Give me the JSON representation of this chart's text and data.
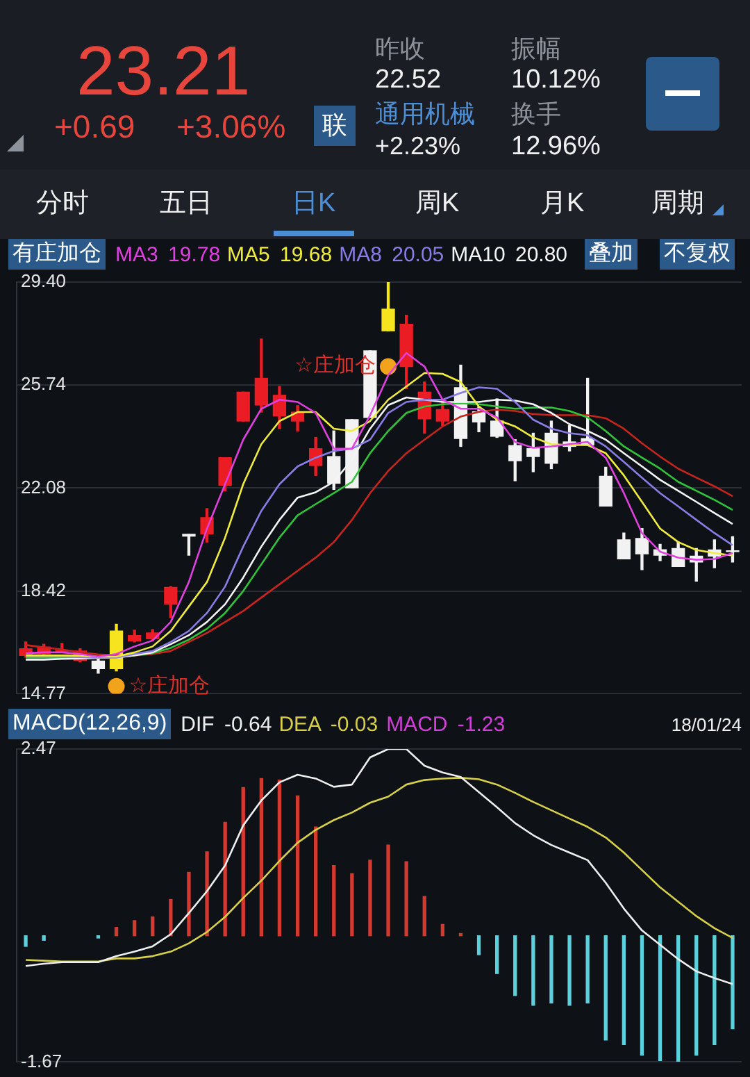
{
  "chart_data": [
    {
      "type": "other",
      "annotations": [
        "23.21",
        "+0.69",
        "+3.06%",
        "联",
        "昨收",
        "22.52",
        "通用机械",
        "+2.23%",
        "振幅",
        "10.12%",
        "换手",
        "12.96%",
        "分时",
        "五日",
        "日K",
        "周K",
        "月K",
        "周期"
      ]
    },
    {
      "type": "candlestick",
      "title": "有庄加仓",
      "categories": [
        null,
        null,
        null,
        null,
        null,
        null,
        null,
        null,
        null,
        null,
        null,
        null,
        null,
        null,
        null,
        null,
        null,
        null,
        null,
        null,
        null,
        null,
        null,
        null,
        null,
        null,
        null,
        null,
        null,
        null,
        null,
        null,
        null,
        null,
        null,
        null,
        null,
        null,
        null,
        null
      ],
      "ohlc": [
        [
          16.13,
          16.61,
          16.07,
          16.37
        ],
        [
          16.19,
          16.53,
          16.13,
          16.43
        ],
        [
          16.28,
          16.56,
          16.26,
          16.31
        ],
        [
          15.95,
          16.37,
          15.9,
          16.29
        ],
        [
          15.93,
          16.05,
          15.5,
          15.66
        ],
        [
          15.66,
          17.24,
          15.58,
          17.0
        ],
        [
          16.65,
          17.03,
          16.61,
          16.84
        ],
        [
          16.72,
          17.05,
          16.66,
          16.93
        ],
        [
          17.95,
          18.58,
          17.48,
          18.55
        ],
        [
          20.44,
          20.44,
          19.69,
          20.37
        ],
        [
          20.45,
          21.35,
          20.16,
          21.03
        ],
        [
          22.18,
          23.16,
          21.98,
          23.16
        ],
        [
          24.46,
          25.49,
          24.46,
          25.49
        ],
        [
          25.03,
          27.38,
          24.78,
          25.98
        ],
        [
          24.64,
          25.69,
          24.19,
          25.38
        ],
        [
          24.46,
          25.01,
          24.11,
          24.78
        ],
        [
          22.88,
          23.88,
          22.53,
          23.48
        ],
        [
          23.2,
          24.11,
          22.03,
          22.25
        ],
        [
          24.51,
          24.51,
          22.09,
          22.09
        ],
        [
          26.96,
          26.96,
          24.59,
          24.59
        ],
        [
          27.67,
          29.4,
          27.67,
          28.44
        ],
        [
          26.4,
          28.22,
          25.61,
          27.9
        ],
        [
          24.54,
          25.85,
          24.03,
          25.49
        ],
        [
          24.46,
          25.19,
          24.3,
          24.87
        ],
        [
          25.65,
          26.45,
          23.56,
          23.84
        ],
        [
          24.79,
          24.98,
          24.08,
          24.43
        ],
        [
          24.46,
          25.25,
          23.88,
          23.92
        ],
        [
          23.59,
          23.8,
          22.34,
          23.05
        ],
        [
          23.48,
          24.03,
          22.66,
          23.2
        ],
        [
          24.03,
          24.46,
          22.77,
          22.96
        ],
        [
          23.72,
          24.3,
          23.4,
          23.56
        ],
        [
          23.84,
          25.98,
          23.61,
          23.61
        ],
        [
          22.5,
          22.82,
          21.44,
          21.44
        ],
        [
          20.24,
          20.48,
          19.56,
          19.56
        ],
        [
          20.29,
          20.64,
          19.18,
          19.74
        ],
        [
          19.89,
          20.08,
          19.5,
          19.69
        ],
        [
          19.93,
          20.16,
          19.29,
          19.29
        ],
        [
          19.66,
          19.93,
          18.77,
          19.45
        ],
        [
          19.88,
          20.24,
          19.25,
          19.66
        ],
        [
          19.85,
          20.35,
          19.45,
          19.82
        ]
      ],
      "colors": [
        "#ec1c24",
        "#ec1c24",
        "#ec1c24",
        "#ec1c24",
        "#f2f2f2",
        "#f5e41e",
        "#ec1c24",
        "#ec1c24",
        "#ec1c24",
        "#f2f2f2",
        "#ec1c24",
        "#ec1c24",
        "#ec1c24",
        "#ec1c24",
        "#ec1c24",
        "#ec1c24",
        "#ec1c24",
        "#f2f2f2",
        "#f2f2f2",
        "#f2f2f2",
        "#f5e41e",
        "#ec1c24",
        "#ec1c24",
        "#ec1c24",
        "#f2f2f2",
        "#f2f2f2",
        "#f2f2f2",
        "#f2f2f2",
        "#f2f2f2",
        "#f2f2f2",
        "#f2f2f2",
        "#f2f2f2",
        "#f2f2f2",
        "#f2f2f2",
        "#f2f2f2",
        "#f2f2f2",
        "#f2f2f2",
        "#f2f2f2",
        "#f2f2f2",
        "#f2f2f2"
      ],
      "ylim": [
        14.77,
        29.4
      ],
      "yticks": [
        14.77,
        18.42,
        22.08,
        25.74,
        {
          "value": 29.4,
          "label": "29.40"
        }
      ],
      "grid": "y",
      "legend": "top left",
      "series": [
        {
          "type": "line",
          "name": "MA3 19.78",
          "color": "#e040e0",
          "values": [
            16.21,
            16.24,
            16.24,
            16.18,
            16.09,
            16.18,
            16.45,
            16.66,
            17.32,
            18.74,
            20.64,
            22.22,
            23.8,
            24.9,
            25.22,
            25.14,
            24.75,
            23.48,
            23.48,
            24.67,
            26.09,
            26.88,
            26.4,
            25.22,
            24.9,
            24.9,
            24.59,
            23.72,
            23.51,
            23.56,
            23.64,
            23.72,
            23.16,
            21.9,
            20.48,
            19.82,
            19.61,
            19.53,
            19.56,
            19.77
          ]
        },
        {
          "type": "line",
          "name": "MA5 19.68",
          "color": "#f0ec3c",
          "values": [
            16.13,
            16.13,
            16.13,
            16.12,
            16.09,
            16.09,
            16.24,
            16.45,
            17.0,
            17.87,
            18.74,
            20.32,
            22.22,
            23.64,
            24.46,
            24.78,
            24.78,
            24.19,
            24.11,
            24.46,
            25.22,
            25.69,
            26.17,
            26.14,
            25.85,
            24.98,
            24.51,
            24.27,
            23.88,
            23.64,
            23.61,
            23.61,
            23.32,
            22.53,
            21.59,
            20.64,
            20.16,
            19.88,
            19.77,
            19.68
          ]
        },
        {
          "type": "line",
          "name": "MA8 20.05",
          "color": "#8a7ce6",
          "values": [
            16.09,
            16.09,
            16.09,
            16.07,
            16.05,
            16.05,
            16.18,
            16.29,
            16.61,
            17.0,
            17.64,
            18.58,
            20.0,
            21.27,
            22.22,
            22.85,
            23.16,
            23.4,
            23.48,
            23.8,
            24.75,
            25.14,
            25.22,
            25.22,
            25.46,
            25.66,
            25.61,
            25.14,
            24.51,
            24.19,
            24.03,
            23.96,
            23.56,
            23.01,
            22.45,
            21.9,
            21.43,
            20.95,
            20.48,
            20.05
          ]
        },
        {
          "type": "line",
          "name": "MA10 20.80",
          "color": "#f4f4f4",
          "values": [
            15.98,
            15.98,
            16.01,
            16.02,
            16.04,
            16.05,
            16.13,
            16.24,
            16.53,
            16.85,
            17.32,
            17.95,
            18.9,
            20.0,
            20.95,
            21.74,
            21.93,
            22.3,
            23.09,
            24.19,
            25.03,
            25.3,
            25.22,
            25.14,
            25.14,
            25.14,
            25.22,
            25.19,
            25.06,
            24.75,
            24.35,
            24.11,
            23.8,
            23.32,
            22.85,
            22.37,
            21.98,
            21.59,
            21.19,
            20.8
          ]
        },
        {
          "type": "line",
          "color": "#2fc43a",
          "values": [
            16.05,
            16.05,
            16.05,
            16.07,
            16.07,
            16.09,
            16.13,
            16.21,
            16.4,
            16.69,
            17.08,
            17.64,
            18.42,
            19.37,
            20.32,
            21.11,
            21.51,
            21.9,
            22.3,
            23.32,
            24.11,
            24.75,
            24.98,
            25.06,
            25.09,
            25.06,
            24.98,
            24.9,
            24.94,
            24.94,
            24.82,
            24.59,
            24.11,
            23.56,
            23.16,
            22.77,
            22.3,
            21.98,
            21.66,
            21.3
          ]
        },
        {
          "type": "line",
          "color": "#c8241e",
          "values": [
            16.5,
            16.42,
            16.34,
            16.24,
            16.17,
            16.13,
            16.13,
            16.18,
            16.29,
            16.61,
            16.93,
            17.32,
            17.71,
            18.19,
            18.66,
            19.14,
            19.61,
            20.16,
            20.95,
            21.9,
            22.69,
            23.32,
            23.8,
            24.27,
            24.62,
            24.79,
            24.87,
            24.82,
            24.71,
            24.67,
            24.67,
            24.67,
            24.56,
            24.19,
            23.67,
            23.2,
            22.77,
            22.45,
            22.14,
            21.79
          ]
        },
        {
          "type": "scatter",
          "color": "#f2a31c",
          "marker": "circle",
          "values": [
            null,
            null,
            null,
            null,
            null,
            15.03,
            null,
            null,
            null,
            null,
            null,
            null,
            null,
            null,
            null,
            null,
            null,
            null,
            null,
            null,
            26.4,
            null,
            null,
            null,
            null,
            null,
            null,
            null,
            null,
            null,
            null,
            null,
            null,
            null,
            null,
            null,
            null,
            null,
            null,
            null
          ],
          "value_labels": [
            null,
            null,
            null,
            null,
            null,
            "☆庄加仓",
            null,
            null,
            null,
            null,
            null,
            null,
            null,
            null,
            null,
            null,
            null,
            null,
            null,
            null,
            "☆庄加仓",
            null,
            null,
            null,
            null,
            null,
            null,
            null,
            null,
            null,
            null,
            null,
            null,
            null,
            null,
            null,
            null,
            null,
            null,
            null
          ]
        }
      ],
      "annotations": [
        "叠加",
        "不复权"
      ]
    },
    {
      "type": "bar",
      "title": "MACD(12,26,9)",
      "categories": [
        null,
        null,
        null,
        null,
        null,
        null,
        null,
        null,
        null,
        null,
        null,
        null,
        null,
        null,
        null,
        null,
        null,
        null,
        null,
        null,
        null,
        null,
        null,
        null,
        null,
        null,
        null,
        null,
        null,
        null,
        null,
        null,
        null,
        null,
        null,
        null,
        null,
        null,
        null,
        null
      ],
      "ylim": [
        -1.67,
        2.47
      ],
      "yticks": [
        -1.67,
        2.47
      ],
      "grid": "y",
      "legend": "top left",
      "series": [
        {
          "values": [
            -0.14,
            -0.06,
            null,
            null,
            -0.03,
            0.11,
            0.2,
            0.25,
            0.48,
            0.84,
            1.11,
            1.5,
            1.96,
            2.08,
            2.06,
            1.85,
            1.44,
            0.93,
            0.82,
            1.0,
            1.2,
            0.98,
            0.52,
            0.15,
            0.03,
            -0.25,
            -0.5,
            -0.79,
            -0.92,
            -0.89,
            -0.92,
            -0.89,
            -1.38,
            -1.44,
            -1.58,
            -1.65,
            -1.66,
            -1.58,
            -1.44,
            -1.23
          ],
          "colors": [
            "#5cd0dc",
            "#5cd0dc",
            "#5cd0dc",
            "#5cd0dc",
            "#5cd0dc",
            "#d23a30",
            "#d23a30",
            "#d23a30",
            "#d23a30",
            "#d23a30",
            "#d23a30",
            "#d23a30",
            "#d23a30",
            "#d23a30",
            "#d23a30",
            "#d23a30",
            "#d23a30",
            "#d23a30",
            "#d23a30",
            "#d23a30",
            "#d23a30",
            "#d23a30",
            "#d23a30",
            "#d23a30",
            "#d23a30",
            "#5cd0dc",
            "#5cd0dc",
            "#5cd0dc",
            "#5cd0dc",
            "#5cd0dc",
            "#5cd0dc",
            "#5cd0dc",
            "#5cd0dc",
            "#5cd0dc",
            "#5cd0dc",
            "#5cd0dc",
            "#5cd0dc",
            "#5cd0dc",
            "#5cd0dc",
            "#5cd0dc"
          ]
        },
        {
          "type": "line",
          "name": "DIF -0.64",
          "color": "#eeeeee",
          "values": [
            -0.4,
            -0.37,
            -0.35,
            -0.35,
            -0.35,
            -0.27,
            -0.21,
            -0.14,
            0.02,
            0.3,
            0.59,
            0.93,
            1.46,
            1.79,
            2.03,
            2.13,
            2.08,
            1.97,
            2.0,
            2.36,
            2.47,
            2.47,
            2.25,
            2.16,
            2.1,
            1.9,
            1.7,
            1.49,
            1.33,
            1.2,
            1.1,
            1.0,
            0.7,
            0.36,
            0.07,
            -0.12,
            -0.31,
            -0.47,
            -0.56,
            -0.64
          ]
        },
        {
          "type": "line",
          "name": "DEA -0.03",
          "color": "#d6cf48",
          "values": [
            -0.32,
            -0.33,
            -0.34,
            -0.34,
            -0.34,
            -0.3,
            -0.3,
            -0.27,
            -0.21,
            -0.1,
            0.05,
            0.25,
            0.5,
            0.73,
            0.99,
            1.23,
            1.4,
            1.53,
            1.63,
            1.76,
            1.84,
            2.0,
            2.06,
            2.08,
            2.09,
            2.07,
            2.0,
            1.89,
            1.77,
            1.66,
            1.55,
            1.44,
            1.3,
            1.1,
            0.87,
            0.64,
            0.45,
            0.26,
            0.1,
            -0.03
          ]
        }
      ],
      "annotations": [
        "MACD -1.23",
        "18/01/24"
      ]
    }
  ]
}
